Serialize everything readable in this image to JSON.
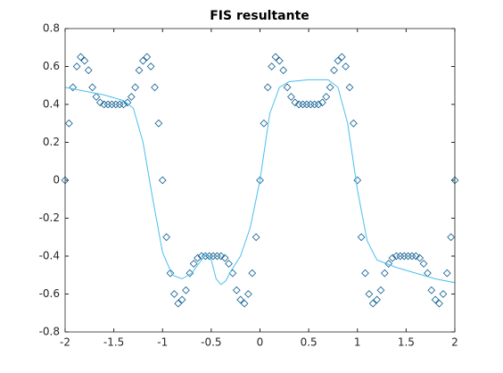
{
  "chart_data": {
    "type": "scatter",
    "title": "FIS resultante",
    "xlim": [
      -2,
      2
    ],
    "xticks": [
      -2,
      -1.5,
      -1,
      -0.5,
      0,
      0.5,
      1,
      1.5,
      2
    ],
    "ylim": [
      -0.8,
      0.8
    ],
    "yticks": [
      -0.8,
      -0.6,
      -0.4,
      -0.2,
      0,
      0.2,
      0.4,
      0.6,
      0.8
    ],
    "grid": false,
    "series": [
      {
        "type": "scatter",
        "marker": "diamond",
        "color": "#0a5a8c",
        "x": [
          -2,
          -1.96,
          -1.92,
          -1.88,
          -1.84,
          -1.8,
          -1.76,
          -1.72,
          -1.68,
          -1.64,
          -1.6,
          -1.56,
          -1.52,
          -1.48,
          -1.44,
          -1.4,
          -1.36,
          -1.32,
          -1.28,
          -1.24,
          -1.2,
          -1.16,
          -1.12,
          -1.08,
          -1.04,
          -1,
          -0.96,
          -0.92,
          -0.88,
          -0.84,
          -0.8,
          -0.76,
          -0.72,
          -0.68,
          -0.64,
          -0.6,
          -0.56,
          -0.52,
          -0.48,
          -0.44,
          -0.4,
          -0.36,
          -0.32,
          -0.28,
          -0.24,
          -0.2,
          -0.16,
          -0.12,
          -0.08,
          -0.04,
          0,
          0.04,
          0.08,
          0.12,
          0.16,
          0.2,
          0.24,
          0.28,
          0.32,
          0.36,
          0.4,
          0.44,
          0.48,
          0.52,
          0.56,
          0.6,
          0.64,
          0.68,
          0.72,
          0.76,
          0.8,
          0.84,
          0.88,
          0.92,
          0.96,
          1,
          1.04,
          1.08,
          1.12,
          1.16,
          1.2,
          1.24,
          1.28,
          1.32,
          1.36,
          1.4,
          1.44,
          1.48,
          1.52,
          1.56,
          1.6,
          1.64,
          1.68,
          1.72,
          1.76,
          1.8,
          1.84,
          1.88,
          1.92,
          1.96,
          2
        ],
        "values": [
          0,
          0.3,
          0.49,
          0.6,
          0.65,
          0.63,
          0.58,
          0.49,
          0.44,
          0.41,
          0.4,
          0.4,
          0.4,
          0.4,
          0.4,
          0.4,
          0.41,
          0.44,
          0.49,
          0.58,
          0.63,
          0.65,
          0.6,
          0.49,
          0.3,
          0,
          -0.3,
          -0.49,
          -0.6,
          -0.65,
          -0.63,
          -0.58,
          -0.49,
          -0.44,
          -0.41,
          -0.4,
          -0.4,
          -0.4,
          -0.4,
          -0.4,
          -0.4,
          -0.41,
          -0.44,
          -0.49,
          -0.58,
          -0.63,
          -0.65,
          -0.6,
          -0.49,
          -0.3,
          0,
          0.3,
          0.49,
          0.6,
          0.65,
          0.63,
          0.58,
          0.49,
          0.44,
          0.41,
          0.4,
          0.4,
          0.4,
          0.4,
          0.4,
          0.4,
          0.41,
          0.44,
          0.49,
          0.58,
          0.63,
          0.65,
          0.6,
          0.49,
          0.3,
          0,
          -0.3,
          -0.49,
          -0.6,
          -0.65,
          -0.63,
          -0.58,
          -0.49,
          -0.44,
          -0.41,
          -0.4,
          -0.4,
          -0.4,
          -0.4,
          -0.4,
          -0.4,
          -0.41,
          -0.44,
          -0.49,
          -0.58,
          -0.63,
          -0.65,
          -0.6,
          -0.49,
          -0.3,
          0
        ]
      },
      {
        "type": "line",
        "color": "#4dbeee",
        "x": [
          -2,
          -1.8,
          -1.6,
          -1.4,
          -1.3,
          -1.2,
          -1.1,
          -1,
          -0.9,
          -0.8,
          -0.7,
          -0.6,
          -0.55,
          -0.5,
          -0.45,
          -0.4,
          -0.35,
          -0.3,
          -0.2,
          -0.1,
          0,
          0.1,
          0.2,
          0.3,
          0.5,
          0.7,
          0.8,
          0.9,
          1,
          1.1,
          1.2,
          1.4,
          1.6,
          1.8,
          2
        ],
        "values": [
          0.49,
          0.47,
          0.45,
          0.42,
          0.38,
          0.2,
          -0.1,
          -0.38,
          -0.5,
          -0.52,
          -0.49,
          -0.42,
          -0.39,
          -0.42,
          -0.52,
          -0.55,
          -0.53,
          -0.48,
          -0.4,
          -0.25,
          0,
          0.35,
          0.49,
          0.52,
          0.53,
          0.53,
          0.49,
          0.3,
          -0.05,
          -0.32,
          -0.42,
          -0.46,
          -0.49,
          -0.52,
          -0.54
        ]
      }
    ]
  }
}
